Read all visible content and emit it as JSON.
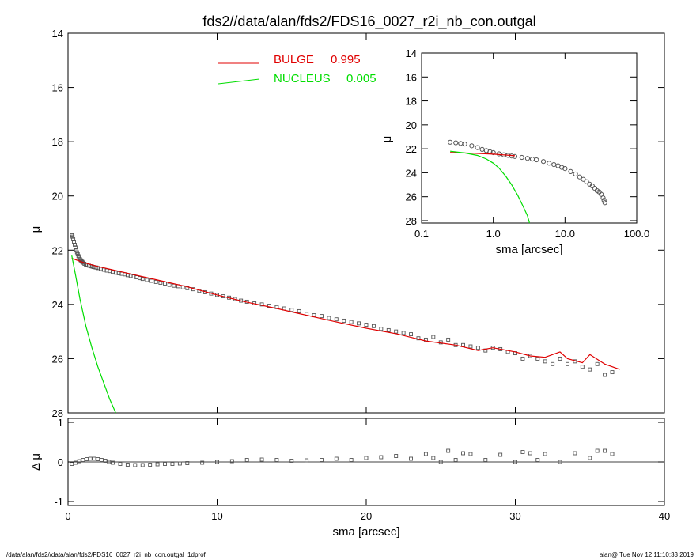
{
  "chart_data": [
    {
      "type": "scatter",
      "role": "main-profile",
      "title": "fds2//data/alan/fds2/FDS16_0027_r2i_nb_con.outgal",
      "xlabel": "",
      "ylabel": "μ",
      "xlim": [
        0,
        40
      ],
      "ylim": [
        28,
        14
      ],
      "xticks": [
        "0",
        "10",
        "20",
        "30",
        "40"
      ],
      "yticks": [
        "14",
        "16",
        "18",
        "20",
        "22",
        "24",
        "26",
        "28"
      ],
      "legend": [
        {
          "name": "BULGE",
          "value": "0.995",
          "color": "#e00000"
        },
        {
          "name": "NUCLEUS",
          "value": "0.005",
          "color": "#00dd00"
        }
      ],
      "series": [
        {
          "name": "data",
          "kind": "points",
          "color": "#555555",
          "x": [
            0.25,
            0.3,
            0.35,
            0.4,
            0.45,
            0.5,
            0.55,
            0.6,
            0.65,
            0.7,
            0.75,
            0.8,
            0.85,
            0.9,
            0.95,
            1.0,
            1.1,
            1.2,
            1.3,
            1.4,
            1.5,
            1.6,
            1.7,
            1.8,
            1.9,
            2.0,
            2.2,
            2.4,
            2.6,
            2.8,
            3.0,
            3.2,
            3.4,
            3.6,
            3.8,
            4.0,
            4.2,
            4.4,
            4.6,
            4.8,
            5.0,
            5.3,
            5.6,
            5.9,
            6.2,
            6.5,
            6.8,
            7.1,
            7.4,
            7.7,
            8.0,
            8.4,
            8.8,
            9.2,
            9.6,
            10.0,
            10.4,
            10.8,
            11.2,
            11.6,
            12.0,
            12.5,
            13.0,
            13.5,
            14.0,
            14.5,
            15.0,
            15.5,
            16.0,
            16.5,
            17.0,
            17.5,
            18.0,
            18.5,
            19.0,
            19.5,
            20.0,
            20.5,
            21.0,
            21.5,
            22.0,
            22.5,
            23.0,
            23.5,
            24.0,
            24.5,
            25.0,
            25.5,
            26.0,
            26.5,
            27.0,
            27.5,
            28.0,
            28.5,
            29.0,
            29.5,
            30.0,
            30.5,
            31.0,
            31.5,
            32.0,
            32.5,
            33.0,
            33.5,
            34.0,
            34.5,
            35.0,
            35.5,
            36.0,
            36.5
          ],
          "y": [
            21.45,
            21.5,
            21.6,
            21.7,
            21.8,
            21.9,
            22.0,
            22.08,
            22.15,
            22.22,
            22.28,
            22.33,
            22.37,
            22.4,
            22.43,
            22.46,
            22.5,
            22.53,
            22.55,
            22.57,
            22.59,
            22.6,
            22.62,
            22.63,
            22.64,
            22.66,
            22.69,
            22.72,
            22.75,
            22.77,
            22.8,
            22.83,
            22.85,
            22.87,
            22.89,
            22.92,
            22.95,
            22.97,
            23.0,
            23.03,
            23.06,
            23.1,
            23.13,
            23.17,
            23.2,
            23.23,
            23.28,
            23.31,
            23.33,
            23.37,
            23.4,
            23.44,
            23.5,
            23.55,
            23.6,
            23.65,
            23.7,
            23.75,
            23.8,
            23.86,
            23.9,
            23.96,
            24.0,
            24.05,
            24.1,
            24.15,
            24.2,
            24.25,
            24.35,
            24.4,
            24.43,
            24.5,
            24.55,
            24.6,
            24.65,
            24.7,
            24.75,
            24.8,
            24.9,
            24.95,
            25.0,
            25.05,
            25.1,
            25.25,
            25.3,
            25.2,
            25.4,
            25.3,
            25.5,
            25.5,
            25.55,
            25.6,
            25.7,
            25.6,
            25.65,
            25.75,
            25.8,
            26.0,
            25.9,
            26.0,
            26.1,
            26.2,
            26.0,
            26.2,
            26.1,
            26.3,
            26.4,
            26.2,
            26.6,
            26.5
          ]
        },
        {
          "name": "BULGE",
          "kind": "line",
          "color": "#e00000",
          "x": [
            0.25,
            1,
            2,
            4,
            6,
            8,
            10,
            12,
            14,
            16,
            18,
            20,
            22,
            24,
            26,
            27.5,
            28.5,
            30,
            31,
            32,
            33,
            33.5,
            34.5,
            35,
            36,
            37
          ],
          "y": [
            22.3,
            22.45,
            22.6,
            22.85,
            23.1,
            23.35,
            23.65,
            23.92,
            24.15,
            24.4,
            24.65,
            24.88,
            25.08,
            25.35,
            25.5,
            25.7,
            25.6,
            25.75,
            25.9,
            25.95,
            25.75,
            26.0,
            26.15,
            25.85,
            26.2,
            26.4
          ]
        },
        {
          "name": "NUCLEUS",
          "kind": "line",
          "color": "#00dd00",
          "x": [
            0.25,
            0.5,
            0.8,
            1.2,
            1.6,
            2.0,
            2.4,
            2.8,
            3.2
          ],
          "y": [
            22.2,
            22.9,
            23.8,
            24.8,
            25.6,
            26.3,
            26.9,
            27.5,
            28.2
          ]
        }
      ]
    },
    {
      "type": "scatter",
      "role": "residuals",
      "xlabel": "sma [arcsec]",
      "ylabel": "Δ μ",
      "xlim": [
        0,
        40
      ],
      "ylim": [
        -1.1,
        1.1
      ],
      "xticks": [
        "0",
        "10",
        "20",
        "30",
        "40"
      ],
      "yticks": [
        "1",
        "0",
        "-1"
      ],
      "series": [
        {
          "name": "residual",
          "kind": "points",
          "color": "#555555",
          "x": [
            0.25,
            0.5,
            0.75,
            1.0,
            1.25,
            1.5,
            1.75,
            2.0,
            2.25,
            2.5,
            2.75,
            3.0,
            3.5,
            4.0,
            4.5,
            5.0,
            5.5,
            6.0,
            6.5,
            7.0,
            7.5,
            8.0,
            9.0,
            10.0,
            11.0,
            12.0,
            13.0,
            14.0,
            15.0,
            16.0,
            17.0,
            18.0,
            19.0,
            20.0,
            21.0,
            22.0,
            23.0,
            24.0,
            24.5,
            25.0,
            25.5,
            26.0,
            26.5,
            27.0,
            28.0,
            29.0,
            30.0,
            30.5,
            31.0,
            31.5,
            32.0,
            33.0,
            34.0,
            35.0,
            35.5,
            36.0,
            36.5
          ],
          "y": [
            -0.05,
            -0.02,
            0.02,
            0.05,
            0.07,
            0.08,
            0.08,
            0.07,
            0.05,
            0.03,
            0.0,
            -0.02,
            -0.05,
            -0.07,
            -0.08,
            -0.08,
            -0.07,
            -0.06,
            -0.05,
            -0.05,
            -0.04,
            -0.03,
            -0.02,
            0.0,
            0.02,
            0.05,
            0.06,
            0.05,
            0.03,
            0.04,
            0.05,
            0.08,
            0.05,
            0.1,
            0.12,
            0.15,
            0.08,
            0.2,
            0.1,
            0.0,
            0.28,
            0.05,
            0.22,
            0.2,
            0.05,
            0.18,
            0.0,
            0.25,
            0.22,
            0.05,
            0.2,
            0.0,
            0.22,
            0.1,
            0.28,
            0.28,
            0.2
          ]
        }
      ]
    },
    {
      "type": "scatter",
      "role": "inset-log-profile",
      "xlabel": "sma [arcsec]",
      "ylabel": "μ",
      "xscale": "log",
      "xlim": [
        0.1,
        100
      ],
      "ylim": [
        28.2,
        14
      ],
      "xticks": [
        "0.1",
        "1.0",
        "10.0",
        "100.0"
      ],
      "yticks": [
        "14",
        "16",
        "18",
        "20",
        "22",
        "24",
        "26",
        "28"
      ],
      "series": [
        {
          "name": "data",
          "kind": "points",
          "color": "#555555",
          "x": [
            0.25,
            0.3,
            0.35,
            0.4,
            0.5,
            0.6,
            0.7,
            0.8,
            0.9,
            1.0,
            1.2,
            1.4,
            1.6,
            1.8,
            2.0,
            2.5,
            3.0,
            3.5,
            4.0,
            5.0,
            6.0,
            7.0,
            8.0,
            9.0,
            10.0,
            12.0,
            14.0,
            16.0,
            18.0,
            20.0,
            22.0,
            24.0,
            26.0,
            28.0,
            30.0,
            32.0,
            34.0,
            35.0,
            36.0
          ],
          "y": [
            21.45,
            21.5,
            21.55,
            21.6,
            21.75,
            21.9,
            22.05,
            22.15,
            22.25,
            22.32,
            22.42,
            22.5,
            22.55,
            22.6,
            22.64,
            22.72,
            22.8,
            22.86,
            22.92,
            23.06,
            23.2,
            23.32,
            23.42,
            23.55,
            23.65,
            23.9,
            24.1,
            24.35,
            24.55,
            24.75,
            24.95,
            25.1,
            25.3,
            25.5,
            25.6,
            25.8,
            26.1,
            26.3,
            26.5
          ]
        },
        {
          "name": "BULGE",
          "kind": "line",
          "color": "#e00000",
          "x": [
            0.25,
            0.5,
            1.0,
            1.5,
            2.0
          ],
          "y": [
            22.3,
            22.37,
            22.45,
            22.52,
            22.58
          ]
        },
        {
          "name": "NUCLEUS",
          "kind": "line",
          "color": "#00dd00",
          "x": [
            0.25,
            0.4,
            0.6,
            0.8,
            1.0,
            1.2,
            1.5,
            1.8,
            2.2,
            2.6,
            3.0,
            3.2
          ],
          "y": [
            22.2,
            22.35,
            22.55,
            22.85,
            23.2,
            23.6,
            24.3,
            25.0,
            25.9,
            26.8,
            27.6,
            28.2
          ]
        }
      ]
    }
  ],
  "footer": {
    "left": "/data/alan/fds2//data/alan/fds2/FDS16_0027_r2i_nb_con.outgal_1dprof",
    "right": "alan@  Tue Nov 12 11:10:33 2019"
  }
}
